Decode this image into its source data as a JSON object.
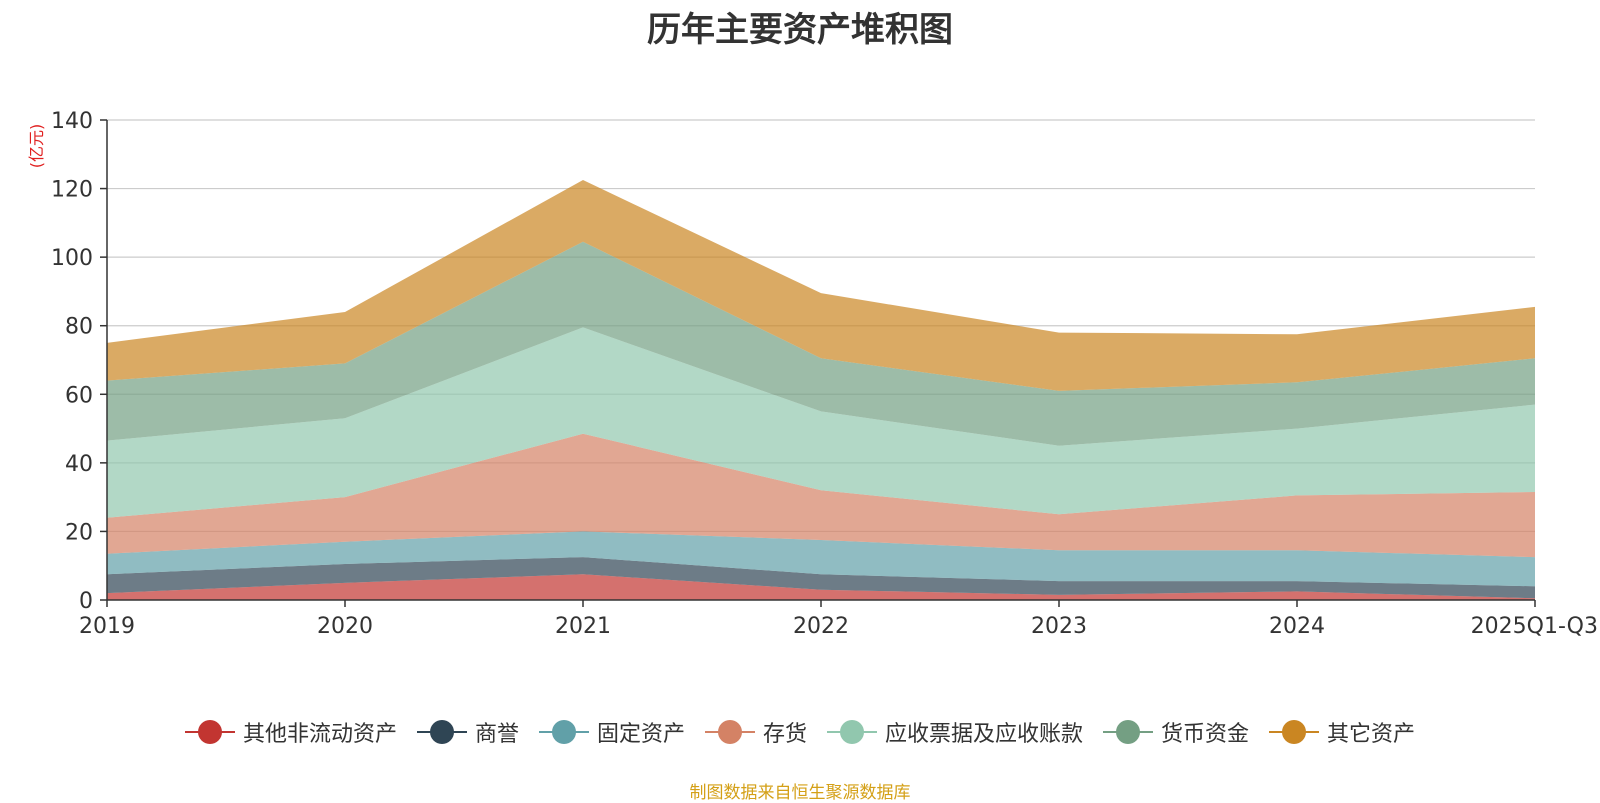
{
  "source_note": "制图数据来自恒生聚源数据库",
  "source_color": "#d4a017",
  "chart_data": {
    "type": "area",
    "stacked": true,
    "title": "历年主要资产堆积图",
    "unit": "(亿元)",
    "categories": [
      "2019",
      "2020",
      "2021",
      "2022",
      "2023",
      "2024",
      "2025Q1-Q3"
    ],
    "ylim": [
      0,
      140
    ],
    "yticks": [
      0,
      20,
      40,
      60,
      80,
      100,
      120,
      140
    ],
    "grid": true,
    "legend_position": "bottom",
    "series": [
      {
        "name": "其他非流动资产",
        "color": "#c23531",
        "values": [
          2.0,
          5.0,
          7.5,
          3.0,
          1.5,
          2.5,
          0.5
        ]
      },
      {
        "name": "商誉",
        "color": "#2f4554",
        "values": [
          5.5,
          5.5,
          5.0,
          4.5,
          4.0,
          3.0,
          3.5
        ]
      },
      {
        "name": "固定资产",
        "color": "#61a0a8",
        "values": [
          6.0,
          6.5,
          7.5,
          10.0,
          9.0,
          9.0,
          8.5
        ]
      },
      {
        "name": "存货",
        "color": "#d48265",
        "values": [
          10.5,
          13.0,
          28.5,
          14.5,
          10.5,
          16.0,
          19.0
        ]
      },
      {
        "name": "应收票据及应收账款",
        "color": "#91c7ae",
        "values": [
          22.5,
          23.0,
          31.0,
          23.0,
          20.0,
          19.5,
          25.5
        ]
      },
      {
        "name": "货币资金",
        "color": "#749f83",
        "values": [
          17.5,
          16.0,
          25.0,
          15.5,
          16.0,
          13.5,
          13.5
        ]
      },
      {
        "name": "其它资产",
        "color": "#ca8622",
        "values": [
          11.0,
          15.0,
          18.0,
          19.0,
          17.0,
          14.0,
          15.0
        ]
      }
    ]
  }
}
